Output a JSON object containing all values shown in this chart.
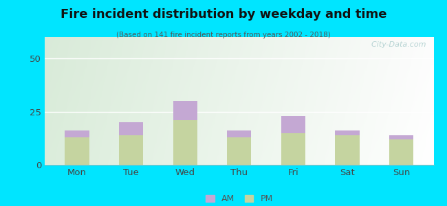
{
  "title": "Fire incident distribution by weekday and time",
  "subtitle": "(Based on 141 fire incident reports from years 2002 - 2018)",
  "categories": [
    "Mon",
    "Tue",
    "Wed",
    "Thu",
    "Fri",
    "Sat",
    "Sun"
  ],
  "pm_values": [
    13,
    14,
    21,
    13,
    15,
    14,
    12
  ],
  "am_values": [
    3,
    6,
    9,
    3,
    8,
    2,
    2
  ],
  "pm_color": "#c5d4a0",
  "am_color": "#c4a8d3",
  "bg_outer": "#00e5ff",
  "ylim": [
    0,
    60
  ],
  "yticks": [
    0,
    25,
    50
  ],
  "bar_width": 0.45,
  "watermark": "  City-Data.com"
}
